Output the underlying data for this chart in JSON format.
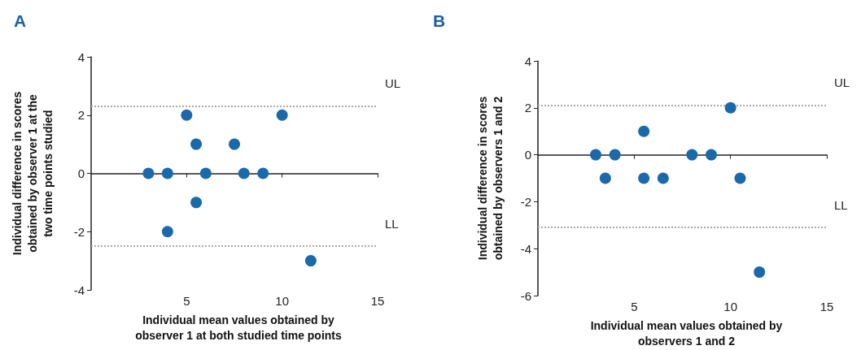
{
  "chart_data": [
    {
      "type": "scatter",
      "title": "A",
      "xlabel": "Individual mean values obtained by observer 1 at both studied time points",
      "ylabel": "Individual difference in scores obtained by observer 1 at the two time points studied",
      "xlim": [
        0,
        15
      ],
      "xticks": [
        5,
        10,
        15
      ],
      "ylim": [
        -4,
        4
      ],
      "yticks": [
        -4,
        -2,
        0,
        2,
        4
      ],
      "marker": "circle",
      "series": [
        {
          "color": "#1a6aab",
          "x": [
            3,
            4,
            5,
            5.5,
            6,
            7.5,
            8,
            9,
            10,
            5.5,
            4,
            11.5
          ],
          "values": [
            0,
            0,
            2,
            1,
            0,
            1,
            0,
            0,
            2,
            -1,
            -2,
            -3
          ]
        }
      ],
      "ref_lines": [
        {
          "axis": "y",
          "value": 2.3,
          "label": "UL",
          "color": "#aaaaaa",
          "line_style": "dotted"
        },
        {
          "axis": "y",
          "value": -2.5,
          "label": "LL",
          "color": "#aaaaaa",
          "line_style": "dotted"
        }
      ]
    },
    {
      "type": "scatter",
      "title": "B",
      "xlabel": "Individual mean values obtained by observers 1 and 2",
      "ylabel": "Individual difference in scores obtained by observers 1 and 2",
      "xlim": [
        0,
        15
      ],
      "xticks": [
        5,
        10,
        15
      ],
      "ylim": [
        -6,
        4
      ],
      "yticks": [
        -6,
        -4,
        -2,
        0,
        2,
        4
      ],
      "marker": "circle",
      "series": [
        {
          "color": "#1a6aab",
          "x": [
            3,
            3.5,
            4,
            5.5,
            5.5,
            6.5,
            8,
            9,
            10,
            10.5,
            11.5
          ],
          "values": [
            0,
            -1,
            0,
            1,
            -1,
            -1,
            0,
            0,
            2,
            -1,
            -5
          ]
        }
      ],
      "ref_lines": [
        {
          "axis": "y",
          "value": 2.1,
          "label": "UL",
          "color": "#aaaaaa",
          "line_style": "dotted"
        },
        {
          "axis": "y",
          "value": -3.1,
          "label": "LL",
          "color": "#aaaaaa",
          "line_style": "dotted"
        }
      ]
    }
  ]
}
